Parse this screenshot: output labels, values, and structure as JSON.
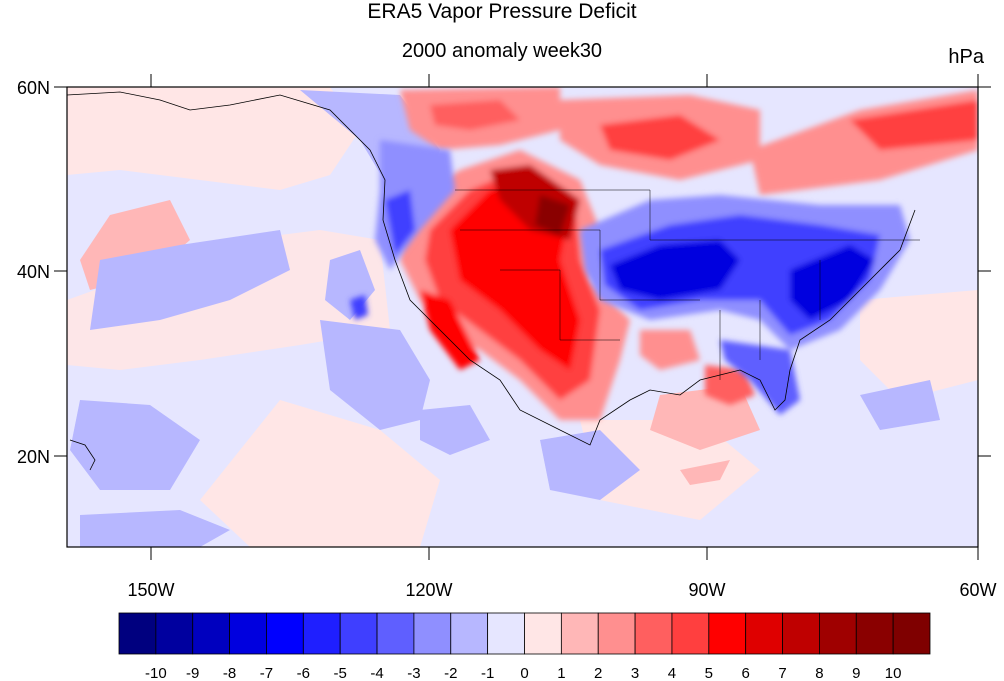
{
  "title": "ERA5 Vapor Pressure Deficit",
  "subtitle": "2000 anomaly week30",
  "units": "hPa",
  "lat_labels": [
    "60N",
    "40N",
    "20N"
  ],
  "lon_labels": [
    "150W",
    "120W",
    "90W",
    "60W"
  ],
  "colorbar": {
    "labels": [
      "-10",
      "-9",
      "-8",
      "-7",
      "-6",
      "-5",
      "-4",
      "-3",
      "-2",
      "-1",
      "0",
      "1",
      "2",
      "3",
      "4",
      "5",
      "6",
      "7",
      "8",
      "9",
      "10"
    ],
    "colors": [
      "#00007f",
      "#00009f",
      "#0000bf",
      "#0000df",
      "#0000ff",
      "#1f1fff",
      "#3f3fff",
      "#5f5fff",
      "#8f8fff",
      "#b7b7ff",
      "#e6e6ff",
      "#ffe6e6",
      "#ffb7b7",
      "#ff8f8f",
      "#ff5f5f",
      "#ff3f3f",
      "#ff0000",
      "#df0000",
      "#bf0000",
      "#9f0000",
      "#8a0000",
      "#7f0000"
    ]
  },
  "map": {
    "lon_range": [
      -160,
      -60
    ],
    "lat_range": [
      10,
      60
    ],
    "background_color": "#e6e6ff"
  }
}
